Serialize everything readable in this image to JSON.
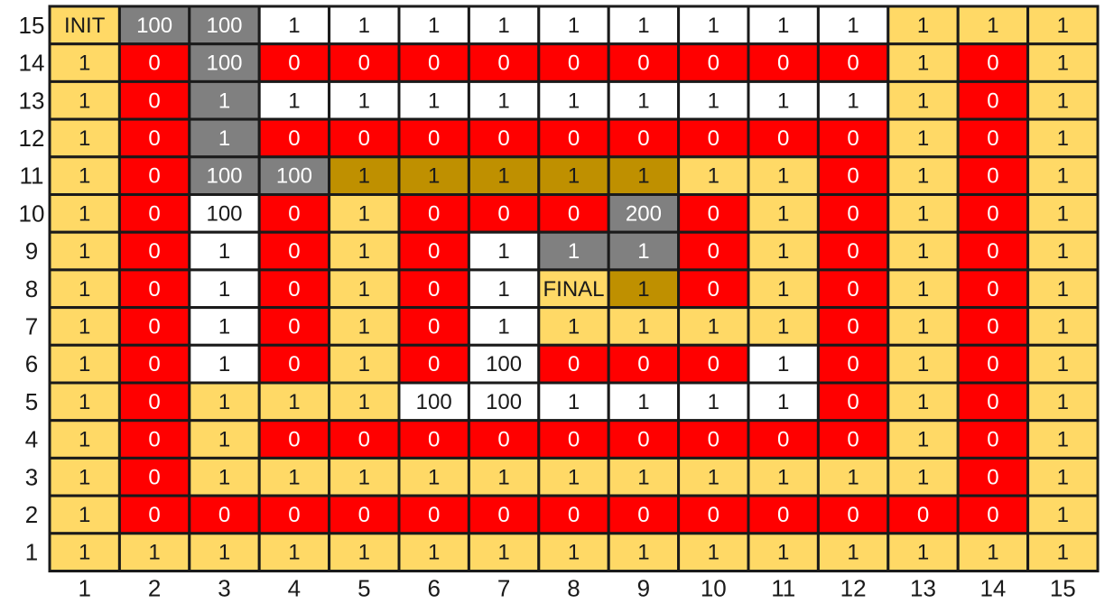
{
  "colors": {
    "Y": "#ffd966",
    "R": "#ff0000",
    "W": "#ffffff",
    "G": "#808080",
    "O": "#bf9000",
    "border": "#1a1a1a",
    "text_dark": "#1a1a1a",
    "text_light": "#ffffff"
  },
  "grid": {
    "x_labels": [
      "1",
      "2",
      "3",
      "4",
      "5",
      "6",
      "7",
      "8",
      "9",
      "10",
      "11",
      "12",
      "13",
      "14",
      "15"
    ],
    "y_labels": [
      "15",
      "14",
      "13",
      "12",
      "11",
      "10",
      "9",
      "8",
      "7",
      "6",
      "5",
      "4",
      "3",
      "2",
      "1"
    ],
    "rows": [
      {
        "y": "15",
        "fills": [
          "Y",
          "G",
          "G",
          "W",
          "W",
          "W",
          "W",
          "W",
          "W",
          "W",
          "W",
          "W",
          "Y",
          "Y",
          "Y"
        ],
        "values": [
          "INIT",
          "100",
          "100",
          "1",
          "1",
          "1",
          "1",
          "1",
          "1",
          "1",
          "1",
          "1",
          "1",
          "1",
          "1"
        ]
      },
      {
        "y": "14",
        "fills": [
          "Y",
          "R",
          "G",
          "R",
          "R",
          "R",
          "R",
          "R",
          "R",
          "R",
          "R",
          "R",
          "Y",
          "R",
          "Y"
        ],
        "values": [
          "1",
          "0",
          "100",
          "0",
          "0",
          "0",
          "0",
          "0",
          "0",
          "0",
          "0",
          "0",
          "1",
          "0",
          "1"
        ]
      },
      {
        "y": "13",
        "fills": [
          "Y",
          "R",
          "G",
          "W",
          "W",
          "W",
          "W",
          "W",
          "W",
          "W",
          "W",
          "W",
          "Y",
          "R",
          "Y"
        ],
        "values": [
          "1",
          "0",
          "1",
          "1",
          "1",
          "1",
          "1",
          "1",
          "1",
          "1",
          "1",
          "1",
          "1",
          "0",
          "1"
        ]
      },
      {
        "y": "12",
        "fills": [
          "Y",
          "R",
          "G",
          "R",
          "R",
          "R",
          "R",
          "R",
          "R",
          "R",
          "R",
          "R",
          "Y",
          "R",
          "Y"
        ],
        "values": [
          "1",
          "0",
          "1",
          "0",
          "0",
          "0",
          "0",
          "0",
          "0",
          "0",
          "0",
          "0",
          "1",
          "0",
          "1"
        ]
      },
      {
        "y": "11",
        "fills": [
          "Y",
          "R",
          "G",
          "G",
          "O",
          "O",
          "O",
          "O",
          "O",
          "Y",
          "Y",
          "R",
          "Y",
          "R",
          "Y"
        ],
        "values": [
          "1",
          "0",
          "100",
          "100",
          "1",
          "1",
          "1",
          "1",
          "1",
          "1",
          "1",
          "0",
          "1",
          "0",
          "1"
        ]
      },
      {
        "y": "10",
        "fills": [
          "Y",
          "R",
          "W",
          "R",
          "Y",
          "R",
          "R",
          "R",
          "G",
          "R",
          "Y",
          "R",
          "Y",
          "R",
          "Y"
        ],
        "values": [
          "1",
          "0",
          "100",
          "0",
          "1",
          "0",
          "0",
          "0",
          "200",
          "0",
          "1",
          "0",
          "1",
          "0",
          "1"
        ]
      },
      {
        "y": "9",
        "fills": [
          "Y",
          "R",
          "W",
          "R",
          "Y",
          "R",
          "W",
          "G",
          "G",
          "R",
          "Y",
          "R",
          "Y",
          "R",
          "Y"
        ],
        "values": [
          "1",
          "0",
          "1",
          "0",
          "1",
          "0",
          "1",
          "1",
          "1",
          "0",
          "1",
          "0",
          "1",
          "0",
          "1"
        ]
      },
      {
        "y": "8",
        "fills": [
          "Y",
          "R",
          "W",
          "R",
          "Y",
          "R",
          "W",
          "Y",
          "O",
          "R",
          "Y",
          "R",
          "Y",
          "R",
          "Y"
        ],
        "values": [
          "1",
          "0",
          "1",
          "0",
          "1",
          "0",
          "1",
          "FINAL",
          "1",
          "0",
          "1",
          "0",
          "1",
          "0",
          "1"
        ]
      },
      {
        "y": "7",
        "fills": [
          "Y",
          "R",
          "W",
          "R",
          "Y",
          "R",
          "W",
          "Y",
          "Y",
          "Y",
          "Y",
          "R",
          "Y",
          "R",
          "Y"
        ],
        "values": [
          "1",
          "0",
          "1",
          "0",
          "1",
          "0",
          "1",
          "1",
          "1",
          "1",
          "1",
          "0",
          "1",
          "0",
          "1"
        ]
      },
      {
        "y": "6",
        "fills": [
          "Y",
          "R",
          "W",
          "R",
          "Y",
          "R",
          "W",
          "R",
          "R",
          "R",
          "W",
          "R",
          "Y",
          "R",
          "Y"
        ],
        "values": [
          "1",
          "0",
          "1",
          "0",
          "1",
          "0",
          "100",
          "0",
          "0",
          "0",
          "1",
          "0",
          "1",
          "0",
          "1"
        ]
      },
      {
        "y": "5",
        "fills": [
          "Y",
          "R",
          "Y",
          "Y",
          "Y",
          "W",
          "W",
          "W",
          "W",
          "W",
          "W",
          "R",
          "Y",
          "R",
          "Y"
        ],
        "values": [
          "1",
          "0",
          "1",
          "1",
          "1",
          "100",
          "100",
          "1",
          "1",
          "1",
          "1",
          "0",
          "1",
          "0",
          "1"
        ]
      },
      {
        "y": "4",
        "fills": [
          "Y",
          "R",
          "Y",
          "R",
          "R",
          "R",
          "R",
          "R",
          "R",
          "R",
          "R",
          "R",
          "Y",
          "R",
          "Y"
        ],
        "values": [
          "1",
          "0",
          "1",
          "0",
          "0",
          "0",
          "0",
          "0",
          "0",
          "0",
          "0",
          "0",
          "1",
          "0",
          "1"
        ]
      },
      {
        "y": "3",
        "fills": [
          "Y",
          "R",
          "Y",
          "Y",
          "Y",
          "Y",
          "Y",
          "Y",
          "Y",
          "Y",
          "Y",
          "Y",
          "Y",
          "R",
          "Y"
        ],
        "values": [
          "1",
          "0",
          "1",
          "1",
          "1",
          "1",
          "1",
          "1",
          "1",
          "1",
          "1",
          "1",
          "1",
          "0",
          "1"
        ]
      },
      {
        "y": "2",
        "fills": [
          "Y",
          "R",
          "R",
          "R",
          "R",
          "R",
          "R",
          "R",
          "R",
          "R",
          "R",
          "R",
          "R",
          "R",
          "Y"
        ],
        "values": [
          "1",
          "0",
          "0",
          "0",
          "0",
          "0",
          "0",
          "0",
          "0",
          "0",
          "0",
          "0",
          "0",
          "0",
          "1"
        ]
      },
      {
        "y": "1",
        "fills": [
          "Y",
          "Y",
          "Y",
          "Y",
          "Y",
          "Y",
          "Y",
          "Y",
          "Y",
          "Y",
          "Y",
          "Y",
          "Y",
          "Y",
          "Y"
        ],
        "values": [
          "1",
          "1",
          "1",
          "1",
          "1",
          "1",
          "1",
          "1",
          "1",
          "1",
          "1",
          "1",
          "1",
          "1",
          "1"
        ]
      }
    ]
  }
}
